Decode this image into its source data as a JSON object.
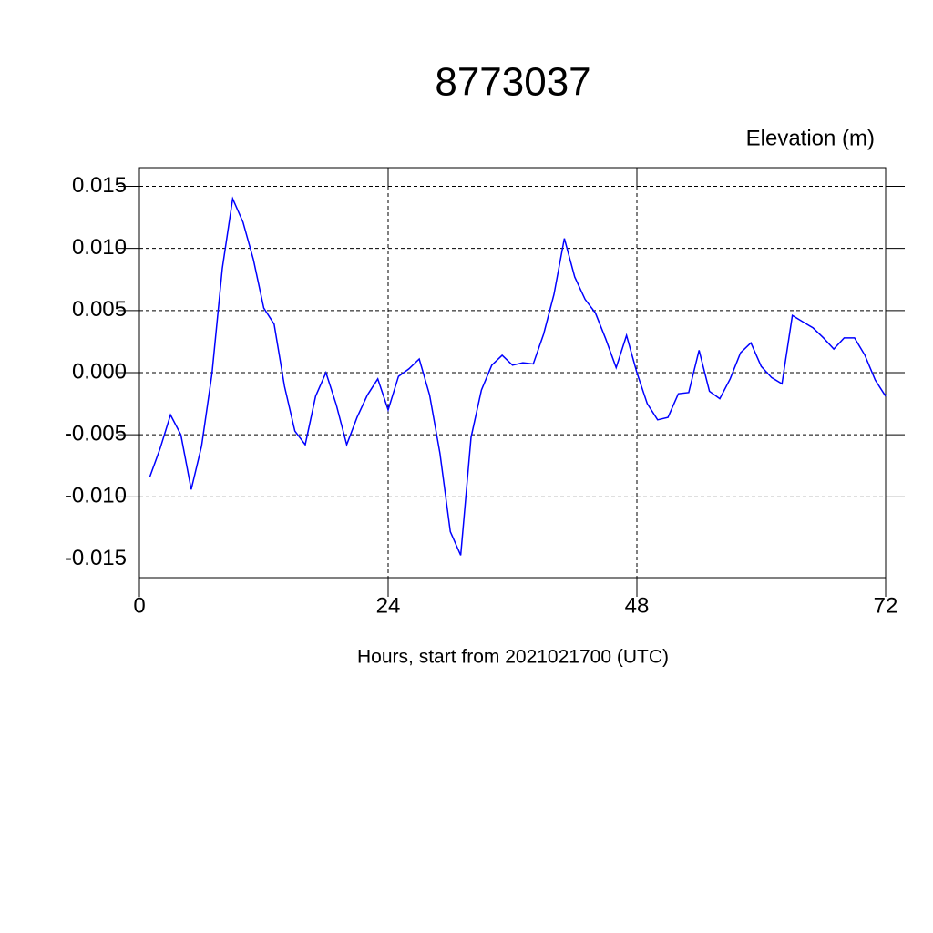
{
  "chart_data": {
    "type": "line",
    "title": "8773037",
    "subtitle": "Elevation (m)",
    "x_label": "Hours, start from 2021021700 (UTC)",
    "x": [
      1,
      2,
      3,
      4,
      5,
      6,
      7,
      8,
      9,
      10,
      11,
      12,
      13,
      14,
      15,
      16,
      17,
      18,
      19,
      20,
      21,
      22,
      23,
      24,
      25,
      26,
      27,
      28,
      29,
      30,
      31,
      32,
      33,
      34,
      35,
      36,
      37,
      38,
      39,
      40,
      41,
      42,
      43,
      44,
      45,
      46,
      47,
      48,
      49,
      50,
      51,
      52,
      53,
      54,
      55,
      56,
      57,
      58,
      59,
      60,
      61,
      62,
      63,
      64,
      65,
      66,
      67,
      68,
      69,
      70,
      71,
      72
    ],
    "series": [
      {
        "color": "#0000ff",
        "values": [
          -0.0084,
          -0.0061,
          -0.0034,
          -0.005,
          -0.0094,
          -0.0059,
          -0.0001,
          0.0084,
          0.014,
          0.0121,
          0.0091,
          0.0052,
          0.0039,
          -0.0011,
          -0.0047,
          -0.0058,
          -0.0019,
          0.0,
          -0.0026,
          -0.0058,
          -0.0036,
          -0.0018,
          -0.0005,
          -0.003,
          -0.0003,
          0.0003,
          0.0011,
          -0.0018,
          -0.0065,
          -0.0128,
          -0.0147,
          -0.0052,
          -0.0014,
          0.0006,
          0.0014,
          0.0006,
          0.0008,
          0.0007,
          0.0031,
          0.0063,
          0.0108,
          0.0077,
          0.0059,
          0.0048,
          0.0027,
          0.0004,
          0.003,
          0.0,
          -0.0025,
          -0.0038,
          -0.0036,
          -0.0017,
          -0.0016,
          0.0018,
          -0.0015,
          -0.0021,
          -0.0005,
          0.0016,
          0.0024,
          0.0005,
          -0.0004,
          -0.0009,
          0.0046,
          0.0041,
          0.0036,
          0.0028,
          0.0019,
          0.0028,
          0.0028,
          0.0014,
          -0.0006,
          -0.0019
        ]
      }
    ],
    "xlim": [
      0,
      72
    ],
    "xticks": [
      0,
      24,
      48,
      72
    ],
    "ylim": [
      -0.0165,
      0.0165
    ],
    "yticks": [
      {
        "value": -0.015,
        "label": "-0.015"
      },
      {
        "value": -0.01,
        "label": "-0.010"
      },
      {
        "value": -0.005,
        "label": "-0.005"
      },
      {
        "value": 0,
        "label": "0.000"
      },
      {
        "value": 0.005,
        "label": "0.005"
      },
      {
        "value": 0.01,
        "label": "0.010"
      },
      {
        "value": 0.015,
        "label": "0.015"
      }
    ],
    "grid": true
  }
}
